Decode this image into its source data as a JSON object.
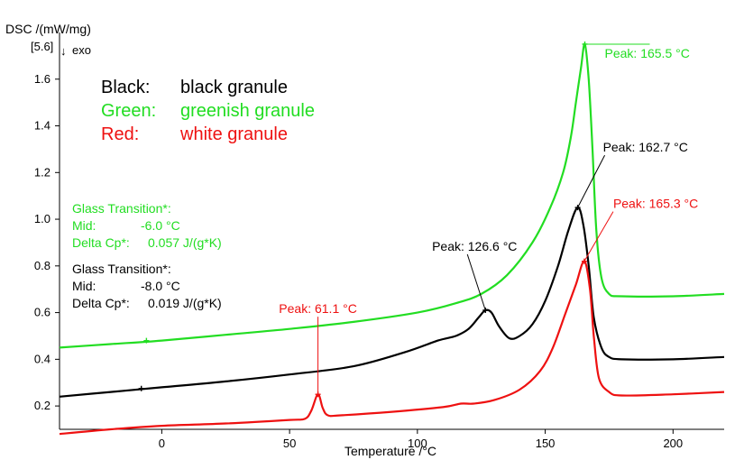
{
  "chart_data": {
    "type": "line",
    "title": "",
    "ylabel": "DSC /(mW/mg)",
    "y_scale_note": "[5.6]",
    "y_exo_label": "exo",
    "xlabel": "Temperature /°C",
    "xlim": [
      -40,
      220
    ],
    "ylim": [
      0.1,
      1.8
    ],
    "x_ticks": [
      0,
      50,
      100,
      150,
      200
    ],
    "y_ticks": [
      0.2,
      0.4,
      0.6,
      0.8,
      1.0,
      1.2,
      1.4,
      1.6
    ],
    "y_tick_labels": [
      "0.2",
      "0.4",
      "0.6",
      "0.8",
      "1.0",
      "1.2",
      "1.4",
      "1.6"
    ],
    "grid": false,
    "legend_position": "top-left",
    "legend": [
      {
        "key": "Black:",
        "value": "black granule",
        "color": "#000000"
      },
      {
        "key": "Green:",
        "value": "greenish granule",
        "color": "#22dd22"
      },
      {
        "key": "Red:",
        "value": "white granule",
        "color": "#ee1111"
      }
    ],
    "series": [
      {
        "color": "#22dd22",
        "points": [
          [
            -40,
            0.45
          ],
          [
            -20,
            0.465
          ],
          [
            0,
            0.48
          ],
          [
            25,
            0.505
          ],
          [
            50,
            0.53
          ],
          [
            75,
            0.56
          ],
          [
            100,
            0.6
          ],
          [
            115,
            0.64
          ],
          [
            125,
            0.68
          ],
          [
            135,
            0.76
          ],
          [
            145,
            0.9
          ],
          [
            152,
            1.05
          ],
          [
            157,
            1.2
          ],
          [
            160,
            1.35
          ],
          [
            162,
            1.5
          ],
          [
            164,
            1.65
          ],
          [
            165.5,
            1.75
          ],
          [
            167,
            1.6
          ],
          [
            168.5,
            1.3
          ],
          [
            170,
            0.95
          ],
          [
            172,
            0.75
          ],
          [
            175,
            0.68
          ],
          [
            180,
            0.67
          ],
          [
            200,
            0.67
          ],
          [
            220,
            0.68
          ]
        ]
      },
      {
        "color": "#000000",
        "points": [
          [
            -40,
            0.24
          ],
          [
            -20,
            0.26
          ],
          [
            0,
            0.28
          ],
          [
            25,
            0.305
          ],
          [
            50,
            0.335
          ],
          [
            75,
            0.37
          ],
          [
            95,
            0.43
          ],
          [
            108,
            0.48
          ],
          [
            115,
            0.5
          ],
          [
            120,
            0.53
          ],
          [
            124,
            0.58
          ],
          [
            126.6,
            0.61
          ],
          [
            129,
            0.6
          ],
          [
            132,
            0.54
          ],
          [
            136,
            0.49
          ],
          [
            140,
            0.5
          ],
          [
            145,
            0.55
          ],
          [
            150,
            0.65
          ],
          [
            155,
            0.8
          ],
          [
            159,
            0.95
          ],
          [
            162.7,
            1.05
          ],
          [
            165,
            0.97
          ],
          [
            167,
            0.8
          ],
          [
            169,
            0.58
          ],
          [
            172,
            0.45
          ],
          [
            175,
            0.41
          ],
          [
            180,
            0.4
          ],
          [
            200,
            0.4
          ],
          [
            220,
            0.41
          ]
        ]
      },
      {
        "color": "#ee1111",
        "points": [
          [
            -40,
            0.08
          ],
          [
            -20,
            0.1
          ],
          [
            0,
            0.115
          ],
          [
            25,
            0.125
          ],
          [
            50,
            0.14
          ],
          [
            56,
            0.145
          ],
          [
            58.5,
            0.18
          ],
          [
            61.1,
            0.25
          ],
          [
            63,
            0.19
          ],
          [
            65,
            0.16
          ],
          [
            70,
            0.16
          ],
          [
            90,
            0.175
          ],
          [
            110,
            0.195
          ],
          [
            117,
            0.21
          ],
          [
            122,
            0.21
          ],
          [
            130,
            0.225
          ],
          [
            140,
            0.27
          ],
          [
            148,
            0.35
          ],
          [
            153,
            0.45
          ],
          [
            158,
            0.6
          ],
          [
            162,
            0.72
          ],
          [
            165.3,
            0.82
          ],
          [
            167.5,
            0.7
          ],
          [
            169,
            0.5
          ],
          [
            171,
            0.32
          ],
          [
            175,
            0.26
          ],
          [
            180,
            0.245
          ],
          [
            200,
            0.25
          ],
          [
            220,
            0.26
          ]
        ]
      }
    ],
    "peaks": [
      {
        "label": "Peak: 165.5 °C",
        "x": 165.5,
        "y": 1.75,
        "color": "#22dd22"
      },
      {
        "label": "Peak: 162.7 °C",
        "x": 162.7,
        "y": 1.05,
        "color": "#000000"
      },
      {
        "label": "Peak: 165.3 °C",
        "x": 165.3,
        "y": 0.82,
        "color": "#ee1111"
      },
      {
        "label": "Peak: 126.6 °C",
        "x": 126.6,
        "y": 0.61,
        "color": "#000000"
      },
      {
        "label": "Peak: 61.1 °C",
        "x": 61.1,
        "y": 0.25,
        "color": "#ee1111"
      }
    ],
    "glass_transitions": [
      {
        "title": "Glass Transition*:",
        "mid_label": "Mid:",
        "mid_value": "-6.0 °C",
        "cp_label": "Delta Cp*:",
        "cp_value": "0.057 J/(g*K)",
        "x": -6.0,
        "y": 0.48,
        "color": "#22dd22"
      },
      {
        "title": "Glass Transition*:",
        "mid_label": "Mid:",
        "mid_value": "-8.0 °C",
        "cp_label": "Delta Cp*:",
        "cp_value": "0.019 J/(g*K)",
        "x": -8.0,
        "y": 0.275,
        "color": "#000000"
      }
    ]
  }
}
